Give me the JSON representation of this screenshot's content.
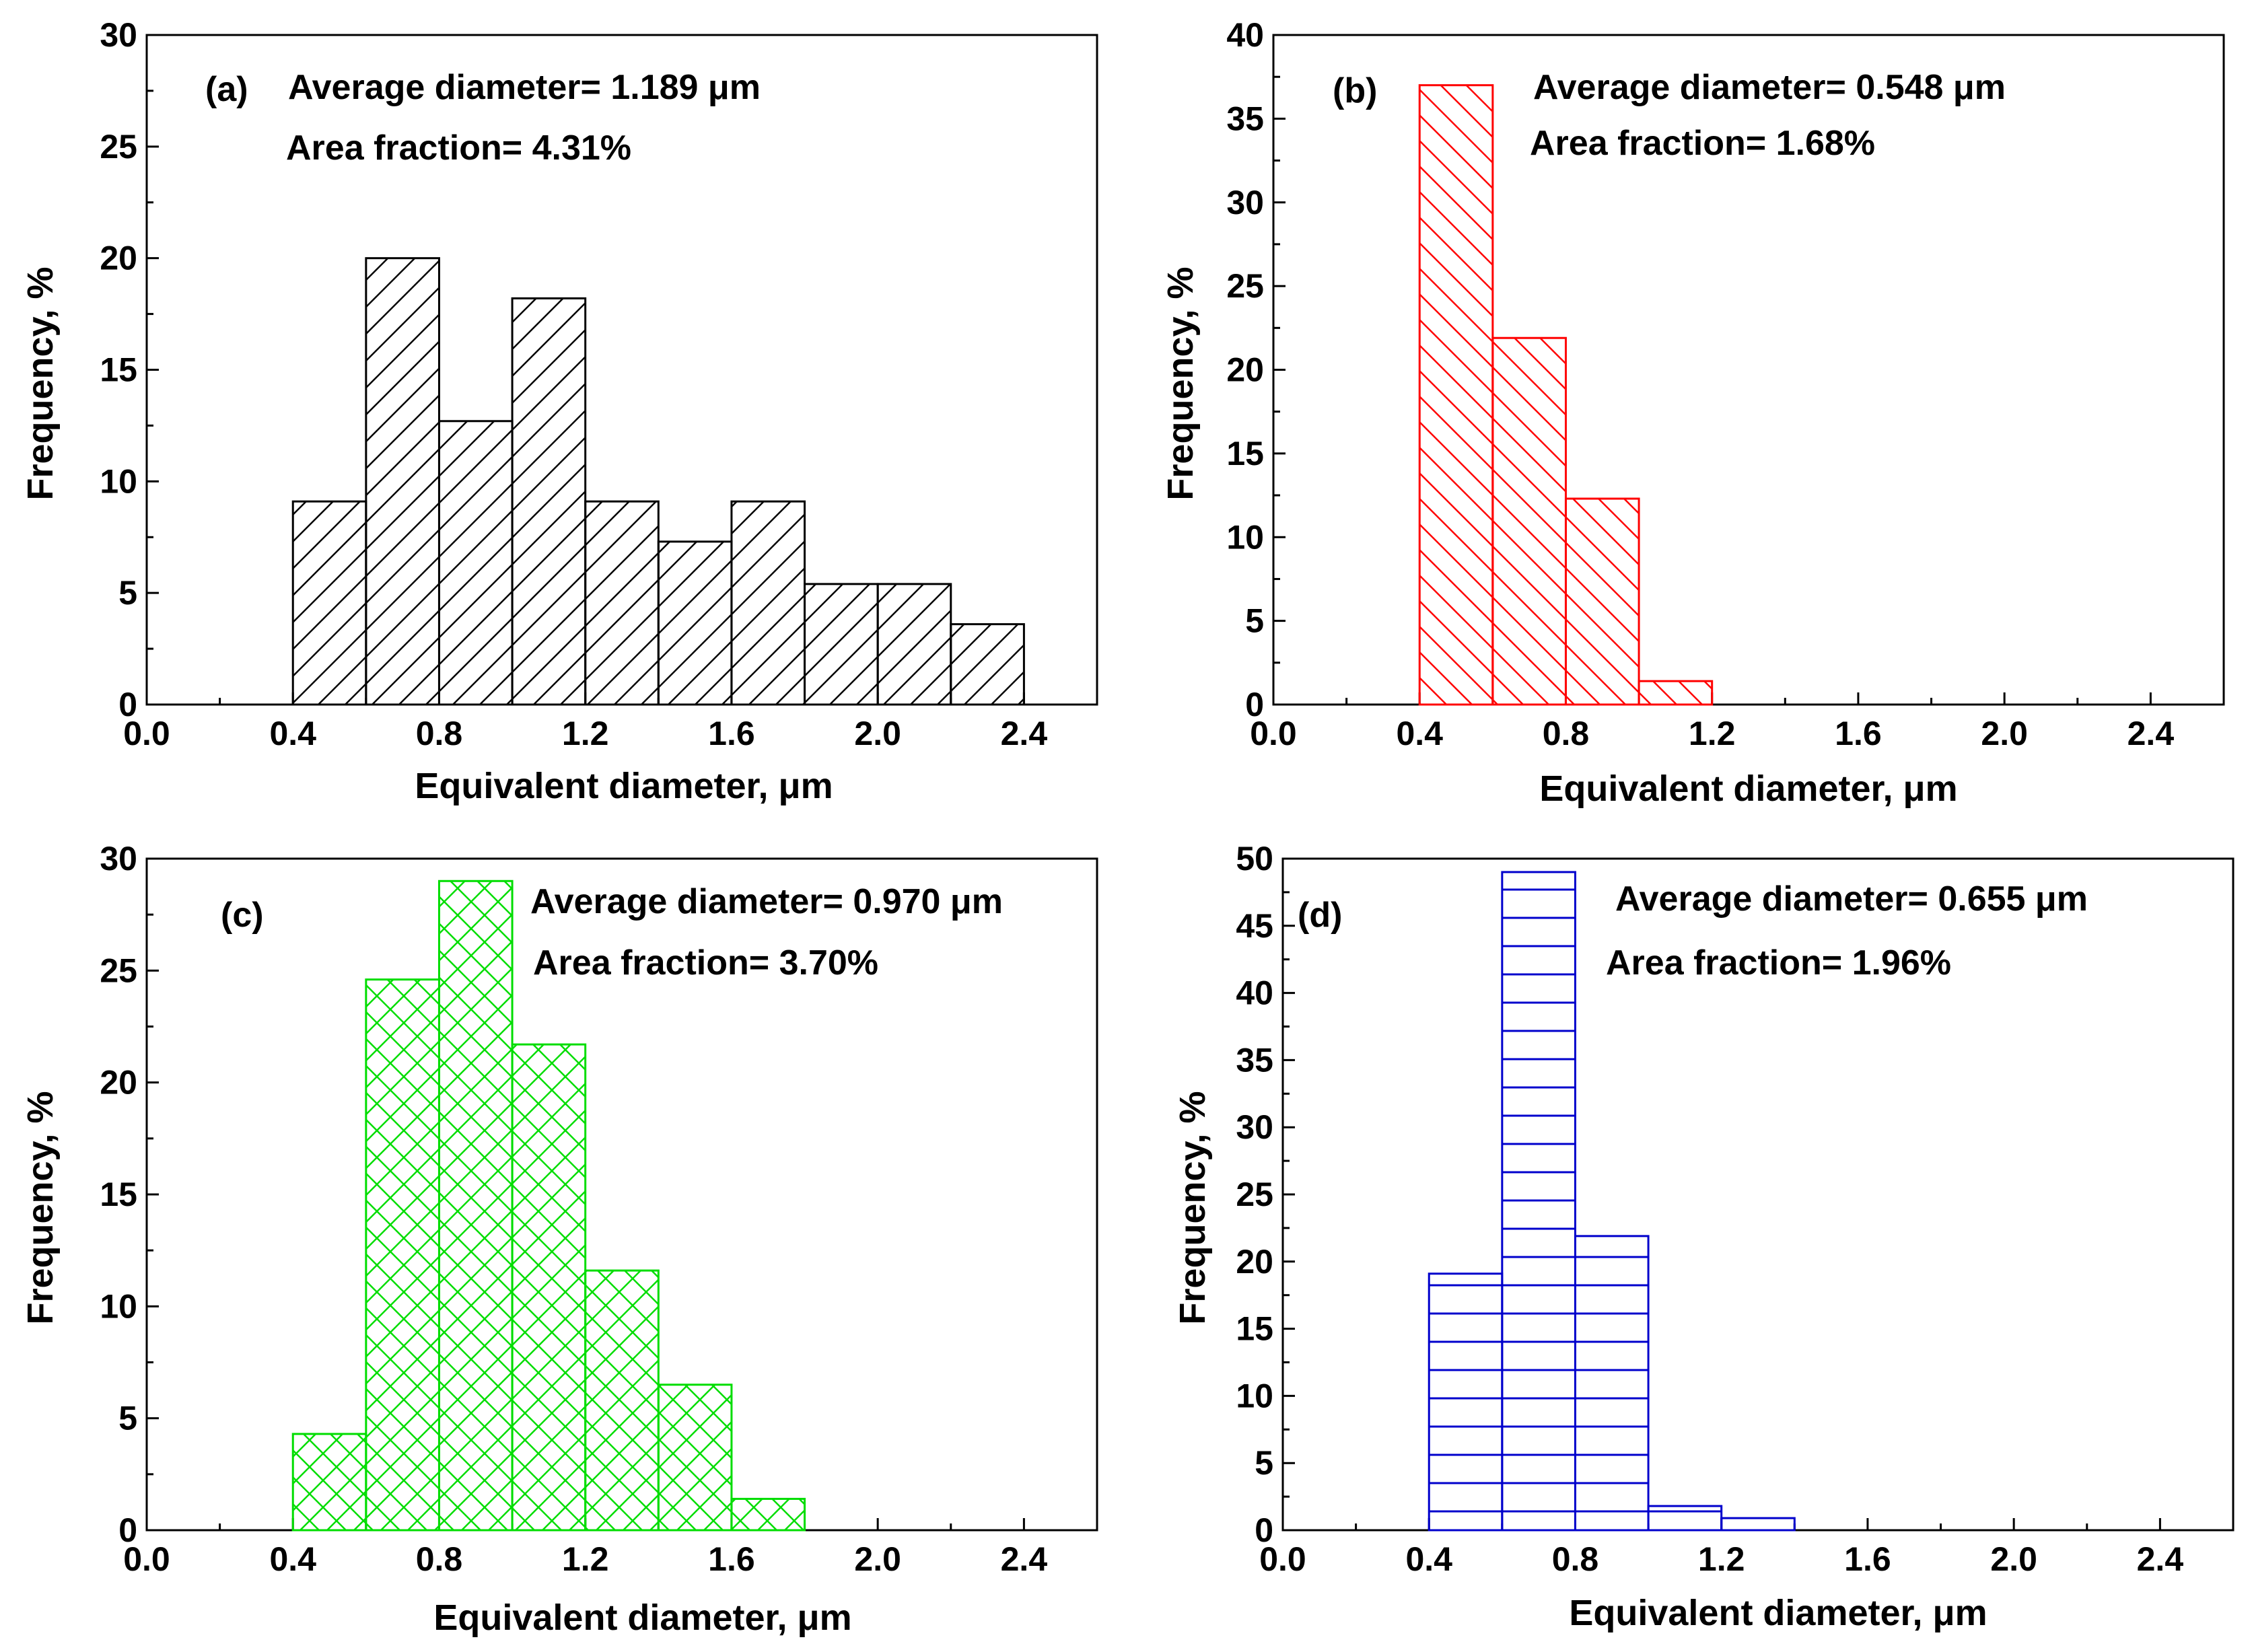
{
  "chart_data": [
    {
      "type": "bar",
      "panel_label": "(a)",
      "annotations": [
        "Average diameter= 1.189 μm",
        "Area fraction= 4.31%"
      ],
      "xlabel": "Equivalent diameter, μm",
      "ylabel": "Frequency, %",
      "xlim": [
        0,
        2.6
      ],
      "ylim": [
        0,
        30
      ],
      "xticks": [
        "0.0",
        "0.4",
        "0.8",
        "1.2",
        "1.6",
        "2.0",
        "2.4"
      ],
      "yticks": [
        "0",
        "5",
        "10",
        "15",
        "20",
        "25",
        "30"
      ],
      "bin_edges": [
        0.4,
        0.6,
        0.8,
        1.0,
        1.2,
        1.4,
        1.6,
        1.8,
        2.0,
        2.2,
        2.4
      ],
      "values": [
        9.1,
        20.0,
        12.7,
        18.2,
        9.1,
        7.3,
        9.1,
        5.4,
        5.4,
        3.6
      ],
      "color": "#000000",
      "pattern": "diagonal-up"
    },
    {
      "type": "bar",
      "panel_label": "(b)",
      "annotations": [
        "Average diameter= 0.548 μm",
        "Area fraction= 1.68%"
      ],
      "xlabel": "Equivalent diameter, μm",
      "ylabel": "Frequency, %",
      "xlim": [
        0,
        2.6
      ],
      "ylim": [
        0,
        40
      ],
      "xticks": [
        "0.0",
        "0.4",
        "0.8",
        "1.2",
        "1.6",
        "2.0",
        "2.4"
      ],
      "yticks": [
        "0",
        "5",
        "10",
        "15",
        "20",
        "25",
        "30",
        "35",
        "40"
      ],
      "bin_edges": [
        0.4,
        0.6,
        0.8,
        1.0,
        1.2
      ],
      "values": [
        37.0,
        21.9,
        12.3,
        1.4
      ],
      "color": "#ff0000",
      "pattern": "diagonal-down"
    },
    {
      "type": "bar",
      "panel_label": "(c)",
      "annotations": [
        "Average diameter= 0.970 μm",
        "Area fraction= 3.70%"
      ],
      "xlabel": "Equivalent diameter, μm",
      "ylabel": "Frequency, %",
      "xlim": [
        0,
        2.6
      ],
      "ylim": [
        0,
        30
      ],
      "xticks": [
        "0.0",
        "0.4",
        "0.8",
        "1.2",
        "1.6",
        "2.0",
        "2.4"
      ],
      "yticks": [
        "0",
        "5",
        "10",
        "15",
        "20",
        "25",
        "30"
      ],
      "bin_edges": [
        0.4,
        0.6,
        0.8,
        1.0,
        1.2,
        1.4,
        1.6,
        1.8
      ],
      "values": [
        4.3,
        24.6,
        29.0,
        21.7,
        11.6,
        6.5,
        1.4
      ],
      "color": "#00dd00",
      "pattern": "crosshatch"
    },
    {
      "type": "bar",
      "panel_label": "(d)",
      "annotations": [
        "Average diameter= 0.655 μm",
        "Area fraction= 1.96%"
      ],
      "xlabel": "Equivalent diameter, μm",
      "ylabel": "Frequency, %",
      "xlim": [
        0,
        2.6
      ],
      "ylim": [
        0,
        50
      ],
      "xticks": [
        "0.0",
        "0.4",
        "0.8",
        "1.2",
        "1.6",
        "2.0",
        "2.4"
      ],
      "yticks": [
        "0",
        "5",
        "10",
        "15",
        "20",
        "25",
        "30",
        "35",
        "40",
        "45",
        "50"
      ],
      "bin_edges": [
        0.4,
        0.6,
        0.8,
        1.0,
        1.2,
        1.4
      ],
      "values": [
        19.1,
        49.0,
        21.9,
        1.8,
        0.9
      ],
      "color": "#0000cc",
      "pattern": "horizontal"
    }
  ]
}
